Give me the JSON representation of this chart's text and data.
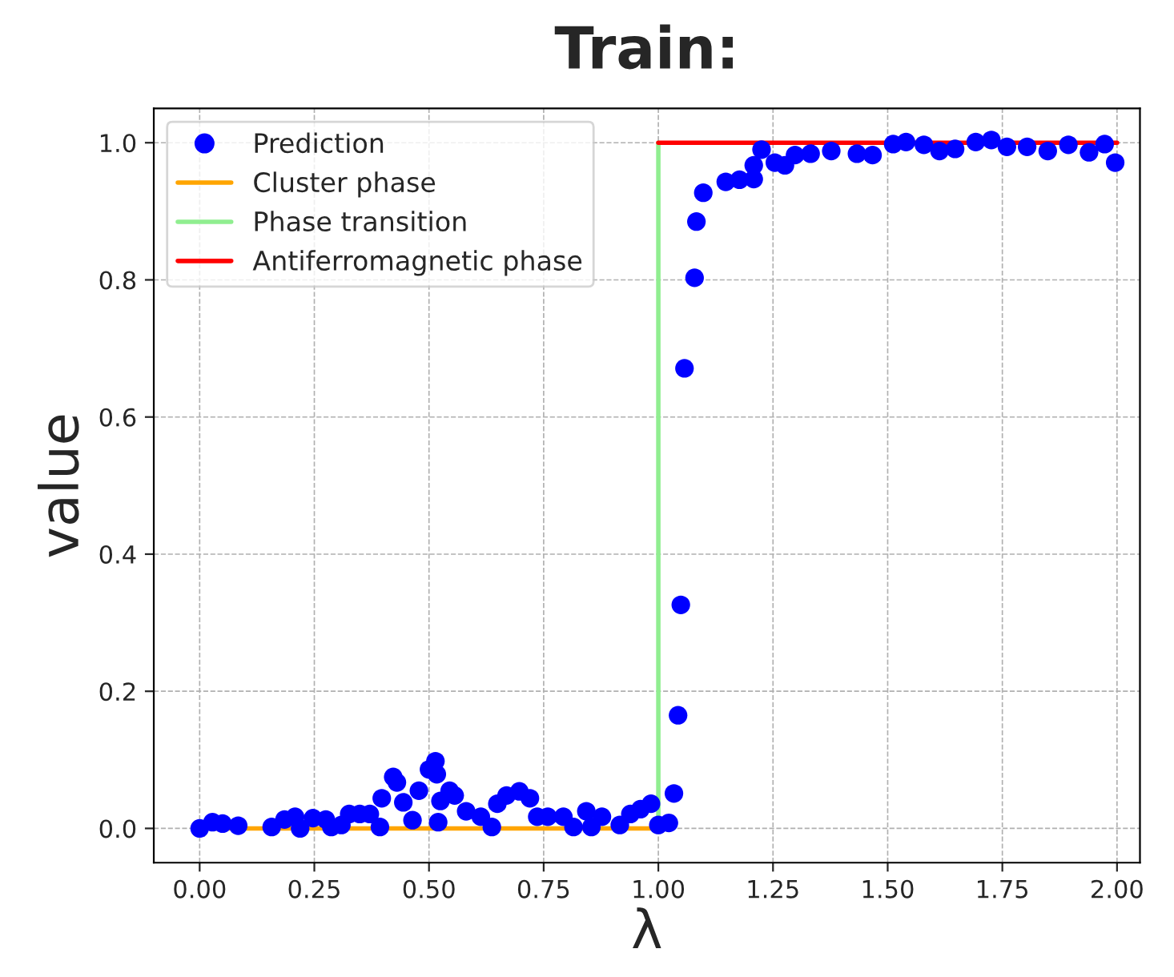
{
  "chart_data": {
    "type": "scatter",
    "title": "Train:",
    "xlabel": "λ",
    "ylabel": "value",
    "xlim": [
      -0.1,
      2.05
    ],
    "ylim": [
      -0.05,
      1.05
    ],
    "xticks": [
      {
        "value": 0,
        "label": "0.00"
      },
      {
        "value": 0.25,
        "label": "0.25"
      },
      {
        "value": 0.5,
        "label": "0.50"
      },
      {
        "value": 0.75,
        "label": "0.75"
      },
      {
        "value": 1,
        "label": "1.00"
      },
      {
        "value": 1.25,
        "label": "1.25"
      },
      {
        "value": 1.5,
        "label": "1.50"
      },
      {
        "value": 1.75,
        "label": "1.75"
      },
      {
        "value": 2,
        "label": "2.00"
      }
    ],
    "yticks": [
      {
        "value": 0,
        "label": "0.0"
      },
      {
        "value": 0.2,
        "label": "0.2"
      },
      {
        "value": 0.4,
        "label": "0.4"
      },
      {
        "value": 0.6,
        "label": "0.6"
      },
      {
        "value": 0.8,
        "label": "0.8"
      },
      {
        "value": 1,
        "label": "1.0"
      }
    ],
    "grid": true,
    "legend": "top left",
    "series": [
      {
        "name": "Prediction",
        "marker": "circle",
        "color": "#0000ff",
        "x": [
          0,
          0.028,
          0.05,
          0.084,
          0.157,
          0.185,
          0.208,
          0.219,
          0.247,
          0.275,
          0.287,
          0.309,
          0.326,
          0.349,
          0.371,
          0.393,
          0.397,
          0.422,
          0.43,
          0.444,
          0.464,
          0.478,
          0.5,
          0.514,
          0.517,
          0.52,
          0.525,
          0.545,
          0.556,
          0.581,
          0.613,
          0.637,
          0.649,
          0.669,
          0.697,
          0.72,
          0.736,
          0.759,
          0.793,
          0.815,
          0.843,
          0.854,
          0.877,
          0.916,
          0.939,
          0.961,
          0.984,
          1.0,
          1.023,
          1.034,
          1.043,
          1.049,
          1.057,
          1.079,
          1.083,
          1.098,
          1.147,
          1.177,
          1.208,
          1.208,
          1.225,
          1.254,
          1.276,
          1.298,
          1.332,
          1.377,
          1.433,
          1.467,
          1.512,
          1.54,
          1.579,
          1.613,
          1.647,
          1.692,
          1.726,
          1.76,
          1.804,
          1.849,
          1.894,
          1.939,
          1.973,
          1.996
        ],
        "values": [
          0,
          0.009,
          0.007,
          0.004,
          0.002,
          0.013,
          0.017,
          0,
          0.015,
          0.013,
          0.002,
          0.005,
          0.021,
          0.021,
          0.021,
          0.002,
          0.044,
          0.075,
          0.067,
          0.038,
          0.012,
          0.055,
          0.086,
          0.098,
          0.079,
          0.009,
          0.04,
          0.055,
          0.048,
          0.025,
          0.017,
          0.002,
          0.036,
          0.048,
          0.054,
          0.044,
          0.017,
          0.017,
          0.017,
          0.002,
          0.025,
          0.002,
          0.017,
          0.005,
          0.021,
          0.028,
          0.036,
          0.005,
          0.008,
          0.051,
          0.165,
          0.326,
          0.671,
          0.803,
          0.885,
          0.927,
          0.943,
          0.946,
          0.947,
          0.967,
          0.99,
          0.971,
          0.967,
          0.982,
          0.984,
          0.988,
          0.984,
          0.982,
          0.998,
          1.001,
          0.997,
          0.988,
          0.991,
          1.001,
          1.004,
          0.994,
          0.994,
          0.988,
          0.997,
          0.986,
          0.998,
          0.971
        ]
      },
      {
        "name": "Cluster phase",
        "type": "line",
        "line_style": "solid",
        "color": "#ffa500",
        "x": [
          0,
          1
        ],
        "values": [
          0,
          0
        ]
      },
      {
        "name": "Phase transition",
        "type": "line",
        "line_style": "solid",
        "color": "#90ee90",
        "x": [
          1,
          1
        ],
        "values": [
          0,
          1
        ]
      },
      {
        "name": "Antiferromagnetic phase",
        "type": "line",
        "line_style": "solid",
        "color": "#ff0000",
        "x": [
          1,
          2
        ],
        "values": [
          1,
          1
        ]
      }
    ]
  }
}
